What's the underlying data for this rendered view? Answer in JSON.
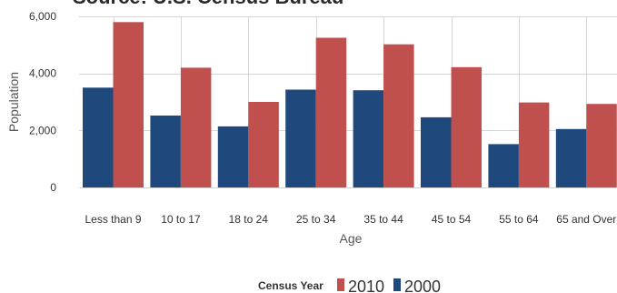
{
  "chart_data": {
    "type": "bar",
    "title": "Source: U.S. Census Bureau",
    "xlabel": "Age",
    "ylabel": "Population",
    "categories": [
      "Less than 9",
      "10 to 17",
      "18 to 24",
      "25 to 34",
      "35 to 44",
      "45 to 54",
      "55 to 64",
      "65 and Over"
    ],
    "series": [
      {
        "name": "2000",
        "color": "#1f497d",
        "values": [
          3500,
          2520,
          2140,
          3430,
          3410,
          2460,
          1520,
          2050
        ]
      },
      {
        "name": "2010",
        "color": "#c0504d",
        "values": [
          5800,
          4200,
          3000,
          5250,
          5020,
          4220,
          2980,
          2930
        ]
      }
    ],
    "ylim": [
      0,
      6000
    ],
    "yticks": [
      0,
      2000,
      4000,
      6000
    ],
    "ytick_labels": [
      "0",
      "2,000",
      "4,000",
      "6,000"
    ],
    "grid": true,
    "legend": {
      "title": "Census Year",
      "position": "bottom",
      "order": [
        "2010",
        "2000"
      ]
    }
  }
}
